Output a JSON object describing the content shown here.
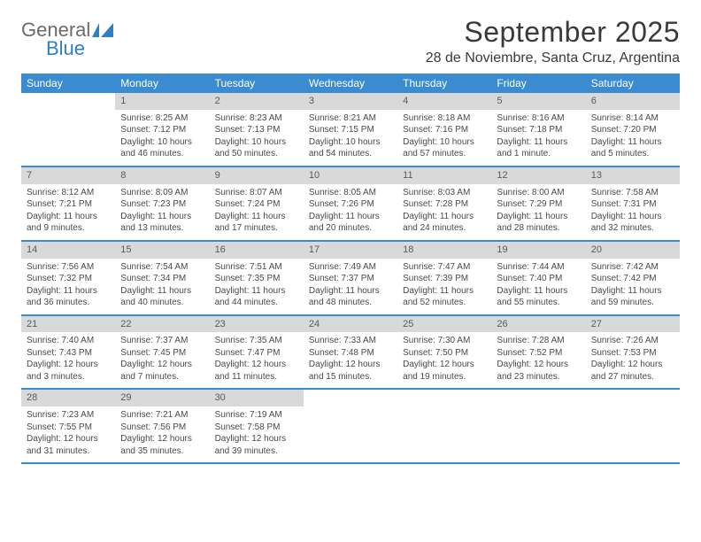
{
  "brand": {
    "line1": "General",
    "line2": "Blue"
  },
  "title": "September 2025",
  "location": "28 de Noviembre, Santa Cruz, Argentina",
  "colors": {
    "header_blue": "#3b8bd0",
    "daynum_gray": "#d9d9d9",
    "text": "#3f3f3f",
    "logo_gray": "#6a6a6a",
    "logo_blue": "#2f7fc2"
  },
  "days_of_week": [
    "Sunday",
    "Monday",
    "Tuesday",
    "Wednesday",
    "Thursday",
    "Friday",
    "Saturday"
  ],
  "weeks": [
    [
      null,
      {
        "n": "1",
        "sunrise": "8:25 AM",
        "sunset": "7:12 PM",
        "daylight": "10 hours and 46 minutes."
      },
      {
        "n": "2",
        "sunrise": "8:23 AM",
        "sunset": "7:13 PM",
        "daylight": "10 hours and 50 minutes."
      },
      {
        "n": "3",
        "sunrise": "8:21 AM",
        "sunset": "7:15 PM",
        "daylight": "10 hours and 54 minutes."
      },
      {
        "n": "4",
        "sunrise": "8:18 AM",
        "sunset": "7:16 PM",
        "daylight": "10 hours and 57 minutes."
      },
      {
        "n": "5",
        "sunrise": "8:16 AM",
        "sunset": "7:18 PM",
        "daylight": "11 hours and 1 minute."
      },
      {
        "n": "6",
        "sunrise": "8:14 AM",
        "sunset": "7:20 PM",
        "daylight": "11 hours and 5 minutes."
      }
    ],
    [
      {
        "n": "7",
        "sunrise": "8:12 AM",
        "sunset": "7:21 PM",
        "daylight": "11 hours and 9 minutes."
      },
      {
        "n": "8",
        "sunrise": "8:09 AM",
        "sunset": "7:23 PM",
        "daylight": "11 hours and 13 minutes."
      },
      {
        "n": "9",
        "sunrise": "8:07 AM",
        "sunset": "7:24 PM",
        "daylight": "11 hours and 17 minutes."
      },
      {
        "n": "10",
        "sunrise": "8:05 AM",
        "sunset": "7:26 PM",
        "daylight": "11 hours and 20 minutes."
      },
      {
        "n": "11",
        "sunrise": "8:03 AM",
        "sunset": "7:28 PM",
        "daylight": "11 hours and 24 minutes."
      },
      {
        "n": "12",
        "sunrise": "8:00 AM",
        "sunset": "7:29 PM",
        "daylight": "11 hours and 28 minutes."
      },
      {
        "n": "13",
        "sunrise": "7:58 AM",
        "sunset": "7:31 PM",
        "daylight": "11 hours and 32 minutes."
      }
    ],
    [
      {
        "n": "14",
        "sunrise": "7:56 AM",
        "sunset": "7:32 PM",
        "daylight": "11 hours and 36 minutes."
      },
      {
        "n": "15",
        "sunrise": "7:54 AM",
        "sunset": "7:34 PM",
        "daylight": "11 hours and 40 minutes."
      },
      {
        "n": "16",
        "sunrise": "7:51 AM",
        "sunset": "7:35 PM",
        "daylight": "11 hours and 44 minutes."
      },
      {
        "n": "17",
        "sunrise": "7:49 AM",
        "sunset": "7:37 PM",
        "daylight": "11 hours and 48 minutes."
      },
      {
        "n": "18",
        "sunrise": "7:47 AM",
        "sunset": "7:39 PM",
        "daylight": "11 hours and 52 minutes."
      },
      {
        "n": "19",
        "sunrise": "7:44 AM",
        "sunset": "7:40 PM",
        "daylight": "11 hours and 55 minutes."
      },
      {
        "n": "20",
        "sunrise": "7:42 AM",
        "sunset": "7:42 PM",
        "daylight": "11 hours and 59 minutes."
      }
    ],
    [
      {
        "n": "21",
        "sunrise": "7:40 AM",
        "sunset": "7:43 PM",
        "daylight": "12 hours and 3 minutes."
      },
      {
        "n": "22",
        "sunrise": "7:37 AM",
        "sunset": "7:45 PM",
        "daylight": "12 hours and 7 minutes."
      },
      {
        "n": "23",
        "sunrise": "7:35 AM",
        "sunset": "7:47 PM",
        "daylight": "12 hours and 11 minutes."
      },
      {
        "n": "24",
        "sunrise": "7:33 AM",
        "sunset": "7:48 PM",
        "daylight": "12 hours and 15 minutes."
      },
      {
        "n": "25",
        "sunrise": "7:30 AM",
        "sunset": "7:50 PM",
        "daylight": "12 hours and 19 minutes."
      },
      {
        "n": "26",
        "sunrise": "7:28 AM",
        "sunset": "7:52 PM",
        "daylight": "12 hours and 23 minutes."
      },
      {
        "n": "27",
        "sunrise": "7:26 AM",
        "sunset": "7:53 PM",
        "daylight": "12 hours and 27 minutes."
      }
    ],
    [
      {
        "n": "28",
        "sunrise": "7:23 AM",
        "sunset": "7:55 PM",
        "daylight": "12 hours and 31 minutes."
      },
      {
        "n": "29",
        "sunrise": "7:21 AM",
        "sunset": "7:56 PM",
        "daylight": "12 hours and 35 minutes."
      },
      {
        "n": "30",
        "sunrise": "7:19 AM",
        "sunset": "7:58 PM",
        "daylight": "12 hours and 39 minutes."
      },
      null,
      null,
      null,
      null
    ]
  ],
  "labels": {
    "sunrise": "Sunrise:",
    "sunset": "Sunset:",
    "daylight": "Daylight:"
  }
}
